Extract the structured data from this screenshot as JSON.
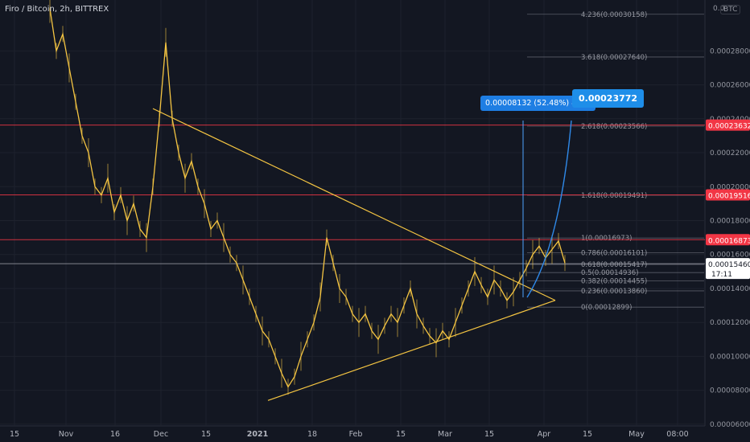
{
  "header": {
    "title": "Firo / Bitcoin, 2h, BITTREX",
    "currency_badge": "BTC"
  },
  "chart_data": {
    "type": "line",
    "title": "Firo / Bitcoin, 2h, BITTREX",
    "xlabel": "",
    "ylabel": "",
    "ylim": [
      5.9e-05,
      0.00031
    ],
    "x_ticks": [
      "15",
      "Nov",
      "16",
      "Dec",
      "15",
      "2021",
      "18",
      "Feb",
      "15",
      "Mar",
      "15",
      "Apr",
      "15",
      "May",
      "08:00"
    ],
    "y_ticks": [
      {
        "label": "0.00028000",
        "value": 0.00028
      },
      {
        "label": "0.00026000",
        "value": 0.00026
      },
      {
        "label": "0.00024000",
        "value": 0.00024
      },
      {
        "label": "0.00022000",
        "value": 0.00022
      },
      {
        "label": "0.00020000",
        "value": 0.0002
      },
      {
        "label": "0.00018000",
        "value": 0.00018
      },
      {
        "label": "0.00016000",
        "value": 0.00016
      },
      {
        "label": "0.00014000",
        "value": 0.00014
      },
      {
        "label": "0.00012000",
        "value": 0.00012
      },
      {
        "label": "0.00010000",
        "value": 0.0001
      },
      {
        "label": "0.00008000",
        "value": 8e-05
      },
      {
        "label": "0.00006000",
        "value": 6e-05
      }
    ],
    "top_clipped_tick": "0.0",
    "price_series": {
      "name": "",
      "color": "#f5c542",
      "points": [
        [
          0,
          0.000305
        ],
        [
          1,
          0.00028
        ],
        [
          2,
          0.00029
        ],
        [
          3,
          0.00027
        ],
        [
          4,
          0.00025
        ],
        [
          5,
          0.00023
        ],
        [
          6,
          0.00022
        ],
        [
          7,
          0.0002
        ],
        [
          8,
          0.000195
        ],
        [
          9,
          0.000205
        ],
        [
          10,
          0.000185
        ],
        [
          11,
          0.000195
        ],
        [
          12,
          0.00018
        ],
        [
          13,
          0.00019
        ],
        [
          14,
          0.000175
        ],
        [
          15,
          0.00017
        ],
        [
          16,
          0.0002
        ],
        [
          17,
          0.00024
        ],
        [
          18,
          0.000285
        ],
        [
          19,
          0.00024
        ],
        [
          20,
          0.00022
        ],
        [
          21,
          0.000205
        ],
        [
          22,
          0.000215
        ],
        [
          23,
          0.0002
        ],
        [
          24,
          0.00019
        ],
        [
          25,
          0.000175
        ],
        [
          26,
          0.00018
        ],
        [
          27,
          0.00017
        ],
        [
          28,
          0.00016
        ],
        [
          29,
          0.000155
        ],
        [
          30,
          0.000145
        ],
        [
          31,
          0.000135
        ],
        [
          32,
          0.000125
        ],
        [
          33,
          0.000115
        ],
        [
          34,
          0.00011
        ],
        [
          35,
          0.0001
        ],
        [
          36,
          9e-05
        ],
        [
          37,
          8.2e-05
        ],
        [
          38,
          8.8e-05
        ],
        [
          39,
          0.0001
        ],
        [
          40,
          0.00011
        ],
        [
          41,
          0.00012
        ],
        [
          42,
          0.000135
        ],
        [
          43,
          0.00017
        ],
        [
          44,
          0.000155
        ],
        [
          45,
          0.00014
        ],
        [
          46,
          0.000135
        ],
        [
          47,
          0.000125
        ],
        [
          48,
          0.00012
        ],
        [
          49,
          0.000125
        ],
        [
          50,
          0.000115
        ],
        [
          51,
          0.00011
        ],
        [
          52,
          0.000118
        ],
        [
          53,
          0.000125
        ],
        [
          54,
          0.00012
        ],
        [
          55,
          0.00013
        ],
        [
          56,
          0.00014
        ],
        [
          57,
          0.000125
        ],
        [
          58,
          0.000118
        ],
        [
          59,
          0.000112
        ],
        [
          60,
          0.000108
        ],
        [
          61,
          0.000115
        ],
        [
          62,
          0.00011
        ],
        [
          63,
          0.00012
        ],
        [
          64,
          0.00013
        ],
        [
          65,
          0.00014
        ],
        [
          66,
          0.00015
        ],
        [
          67,
          0.000142
        ],
        [
          68,
          0.000135
        ],
        [
          69,
          0.000145
        ],
        [
          70,
          0.00014
        ],
        [
          71,
          0.000133
        ],
        [
          72,
          0.000138
        ],
        [
          73,
          0.000145
        ],
        [
          74,
          0.000152
        ],
        [
          75,
          0.00016
        ],
        [
          76,
          0.000165
        ],
        [
          77,
          0.000158
        ],
        [
          78,
          0.000163
        ],
        [
          79,
          0.000168
        ],
        [
          80,
          0.000155
        ]
      ]
    },
    "h_levels": [
      {
        "price": 0.00023632,
        "label": "0.00023632",
        "color": "#f23645"
      },
      {
        "price": 0.00019516,
        "label": "0.00019516",
        "color": "#f23645"
      },
      {
        "price": 0.00016873,
        "label": "0.00016873",
        "color": "#f23645"
      },
      {
        "price": 0.0001546,
        "label": "0.00015460",
        "color": "#9598a1",
        "sublabel": "17:11"
      }
    ],
    "fib_levels": [
      {
        "ratio": "4.236",
        "price": 0.00030158,
        "label": "4.236(0.00030158)"
      },
      {
        "ratio": "3.618",
        "price": 0.0002764,
        "label": "3.618(0.00027640)"
      },
      {
        "ratio": "2.618",
        "price": 0.00023566,
        "label": "2.618(0.00023566)"
      },
      {
        "ratio": "1.618",
        "price": 0.00019491,
        "label": "1.618(0.00019491)"
      },
      {
        "ratio": "1",
        "price": 0.00016973,
        "label": "1(0.00016973)"
      },
      {
        "ratio": "0.786",
        "price": 0.00016101,
        "label": "0.786(0.00016101)"
      },
      {
        "ratio": "0.618",
        "price": 0.00015417,
        "label": "0.618(0.00015417)"
      },
      {
        "ratio": "0.5",
        "price": 0.00014936,
        "label": "0.5(0.00014936)"
      },
      {
        "ratio": "0.382",
        "price": 0.00014455,
        "label": "0.382(0.00014455)"
      },
      {
        "ratio": "0.236",
        "price": 0.0001386,
        "label": "0.236(0.00013860)"
      },
      {
        "ratio": "0",
        "price": 0.00012899,
        "label": "0(0.00012899)"
      }
    ],
    "triangle": {
      "upper": [
        [
          16,
          0.000246
        ],
        [
          77,
          0.000133
        ]
      ],
      "lower": [
        [
          37,
          7.4e-05
        ],
        [
          77,
          0.000133
        ]
      ]
    },
    "target_annotation": {
      "measure_label": "0.00008132 (52.48%) 8132",
      "target_label": "0.00023772",
      "target_price": 0.00023772
    },
    "legend": "none",
    "grid": true
  }
}
